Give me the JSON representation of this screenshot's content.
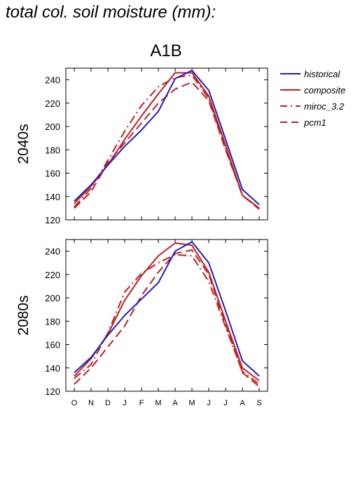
{
  "page_title": "total col. soil moisture (mm):",
  "scenario": "A1B",
  "chart_data": {
    "type": "line",
    "x_categories": [
      "O",
      "N",
      "D",
      "J",
      "F",
      "M",
      "A",
      "M",
      "J",
      "J",
      "A",
      "S"
    ],
    "ylim": [
      120,
      250
    ],
    "y_ticks": [
      120,
      140,
      160,
      180,
      200,
      220,
      240
    ],
    "legend": {
      "placement": "right",
      "entries": [
        {
          "name": "historical",
          "style": "solid",
          "color": "#1f1fbf"
        },
        {
          "name": "composite",
          "style": "solid",
          "color": "#bf1f1f"
        },
        {
          "name": "miroc_3.2",
          "style": "dashdot",
          "color": "#bf1f1f"
        },
        {
          "name": "pcm1",
          "style": "dashed",
          "color": "#bf1f1f"
        }
      ]
    },
    "panels": [
      {
        "label": "2040s",
        "series": [
          {
            "name": "historical",
            "values": [
              136,
              150,
              167,
              183,
              197,
              213,
              241,
              248,
              231,
              189,
              146,
              133
            ]
          },
          {
            "name": "composite",
            "values": [
              134,
              149,
              167,
              189,
              209,
              228,
              246,
              246,
              226,
              184,
              141,
              130
            ]
          },
          {
            "name": "miroc_3.2",
            "values": [
              131,
              147,
              171,
              196,
              218,
              234,
              242,
              244,
              224,
              181,
              141,
              130
            ]
          },
          {
            "name": "pcm1",
            "values": [
              130,
              144,
              169,
              186,
              203,
              220,
              232,
              238,
              222,
              180,
              141,
              129
            ]
          }
        ]
      },
      {
        "label": "2080s",
        "series": [
          {
            "name": "historical",
            "values": [
              136,
              149,
              168,
              185,
              199,
              213,
              240,
              248,
              230,
              189,
              146,
              133
            ]
          },
          {
            "name": "composite",
            "values": [
              133,
              148,
              169,
              198,
              219,
              236,
              247,
              245,
              222,
              180,
              140,
              129
            ]
          },
          {
            "name": "miroc_3.2",
            "values": [
              131,
              143,
              170,
              205,
              221,
              230,
              237,
              236,
              214,
              175,
              137,
              126
            ]
          },
          {
            "name": "pcm1",
            "values": [
              126,
              140,
              158,
              176,
              202,
              222,
              238,
              241,
              220,
              177,
              136,
              124
            ]
          }
        ]
      }
    ]
  }
}
